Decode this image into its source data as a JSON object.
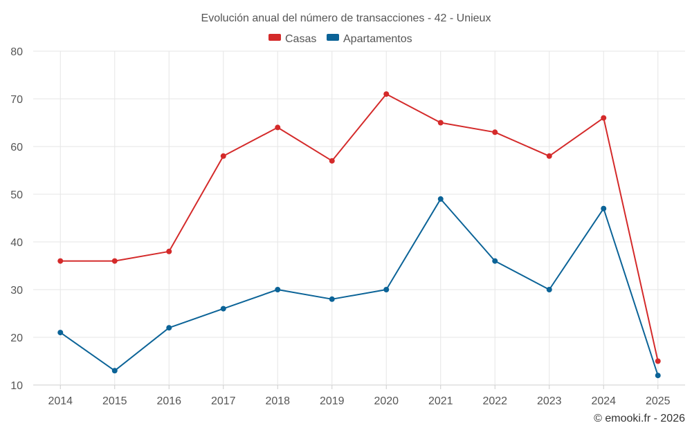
{
  "chart_data": {
    "type": "line",
    "title": "Evolución anual del número de transacciones - 42 - Unieux",
    "categories": [
      "2014",
      "2015",
      "2016",
      "2017",
      "2018",
      "2019",
      "2020",
      "2021",
      "2022",
      "2023",
      "2024",
      "2025"
    ],
    "series": [
      {
        "name": "Casas",
        "color": "#d42a2a",
        "values": [
          36,
          36,
          38,
          58,
          64,
          57,
          71,
          65,
          63,
          58,
          66,
          15
        ]
      },
      {
        "name": "Apartamentos",
        "color": "#0b6397",
        "values": [
          21,
          13,
          22,
          26,
          30,
          28,
          30,
          49,
          36,
          30,
          47,
          12
        ]
      }
    ],
    "ylim": [
      10,
      80
    ],
    "yticks": [
      "10",
      "20",
      "30",
      "40",
      "50",
      "60",
      "70",
      "80"
    ],
    "grid": true,
    "legend": "top-center",
    "xlabel": "",
    "ylabel": ""
  },
  "credit": "© emooki.fr - 2026"
}
